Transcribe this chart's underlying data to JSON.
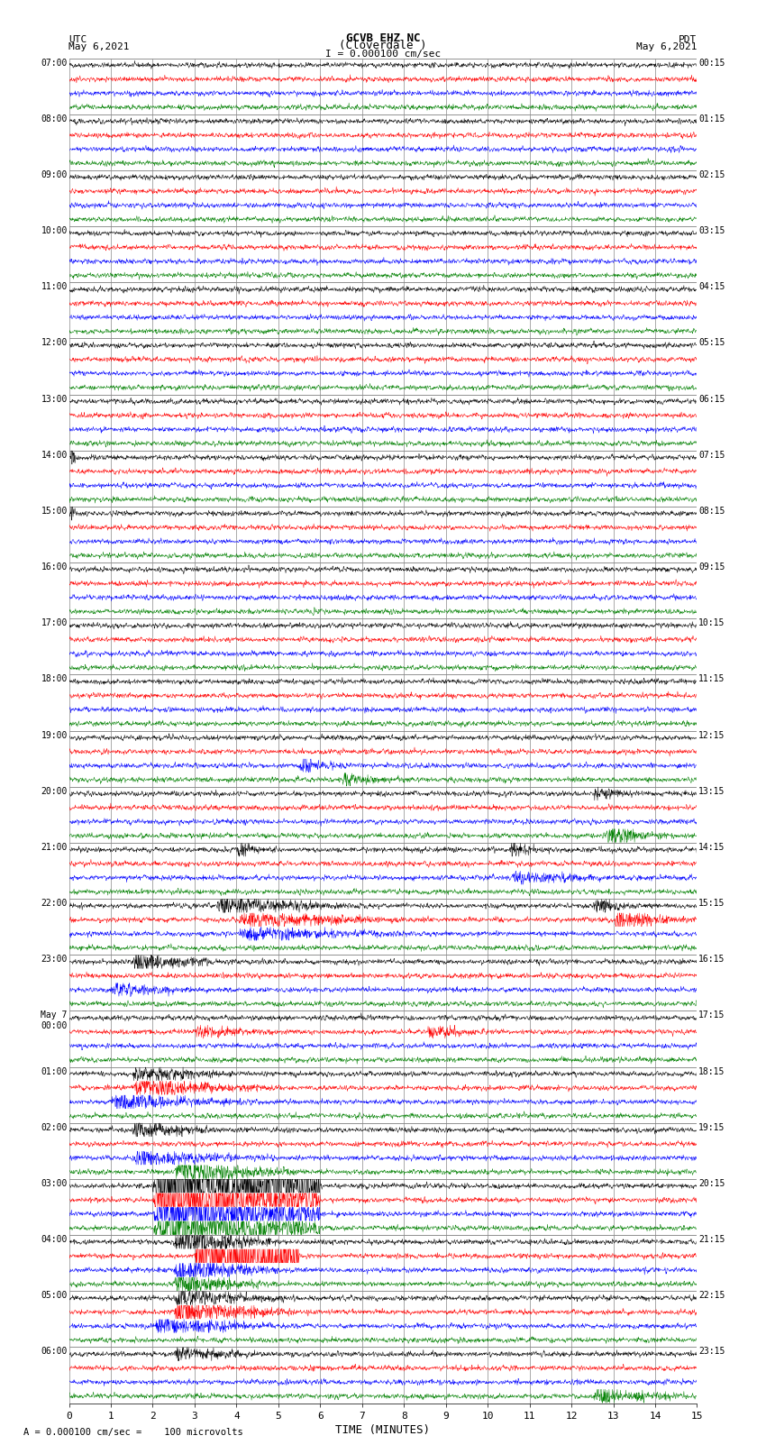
{
  "title_line1": "GCVB EHZ NC",
  "title_line2": "(Cloverdale )",
  "scale_text": "I = 0.000100 cm/sec",
  "utc_label": "UTC",
  "utc_date": "May 6,2021",
  "pdt_label": "PDT",
  "pdt_date": "May 6,2021",
  "bottom_label": "A",
  "bottom_text": "= 0.000100 cm/sec =    100 microvolts",
  "xlabel": "TIME (MINUTES)",
  "left_times_utc": [
    "07:00",
    "08:00",
    "09:00",
    "10:00",
    "11:00",
    "12:00",
    "13:00",
    "14:00",
    "15:00",
    "16:00",
    "17:00",
    "18:00",
    "19:00",
    "20:00",
    "21:00",
    "22:00",
    "23:00",
    "May 7\n00:00",
    "01:00",
    "02:00",
    "03:00",
    "04:00",
    "05:00",
    "06:00"
  ],
  "right_times_pdt": [
    "00:15",
    "01:15",
    "02:15",
    "03:15",
    "04:15",
    "05:15",
    "06:15",
    "07:15",
    "08:15",
    "09:15",
    "10:15",
    "11:15",
    "12:15",
    "13:15",
    "14:15",
    "15:15",
    "16:15",
    "17:15",
    "18:15",
    "19:15",
    "20:15",
    "21:15",
    "22:15",
    "23:15"
  ],
  "num_groups": 24,
  "traces_per_group": 4,
  "minutes_per_row": 15,
  "xlim": [
    0,
    15
  ],
  "xticks": [
    0,
    1,
    2,
    3,
    4,
    5,
    6,
    7,
    8,
    9,
    10,
    11,
    12,
    13,
    14,
    15
  ],
  "colors_cycle": [
    "black",
    "red",
    "blue",
    "green"
  ],
  "bg_color": "white",
  "plot_bg_color": "white",
  "grid_color": "#888888",
  "amplitude_base": 0.08,
  "seed": 42
}
